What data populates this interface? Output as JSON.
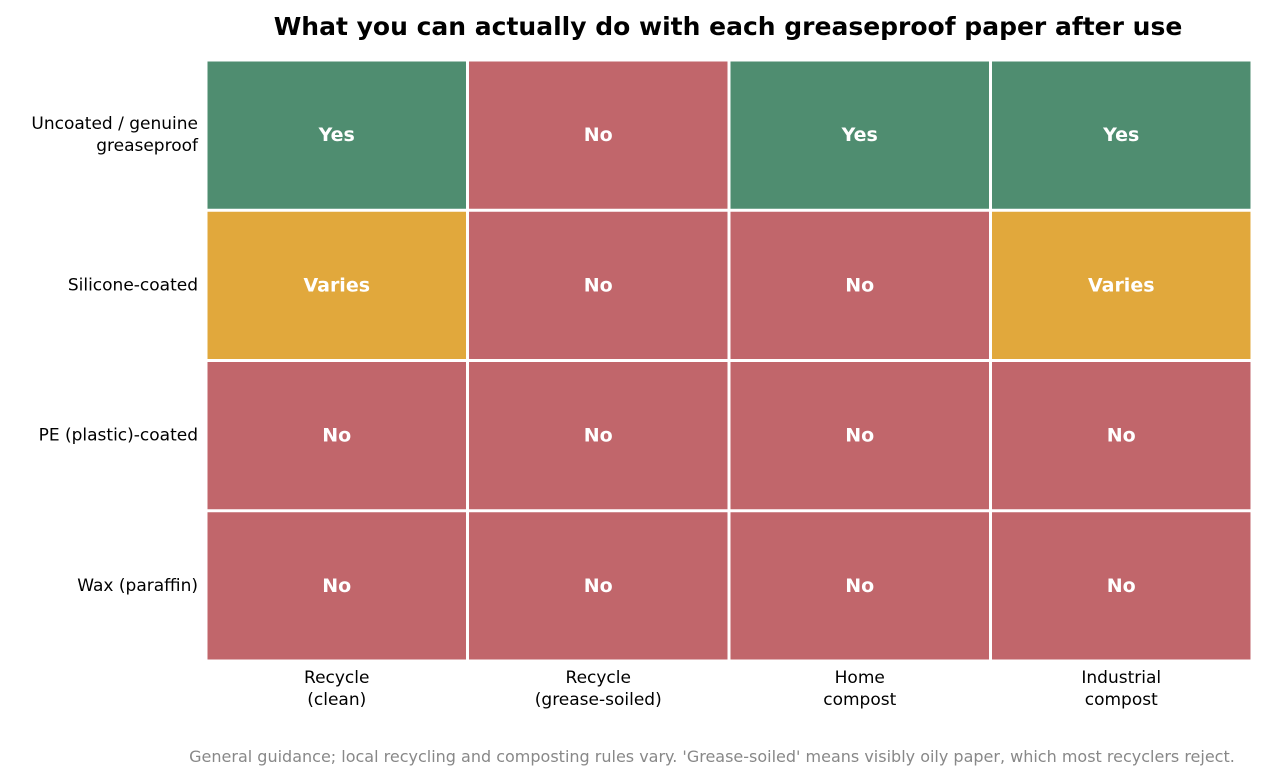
{
  "chart_data": {
    "type": "heatmap",
    "title": "What you can actually do with each greaseproof paper after use",
    "rows": [
      [
        "Uncoated / genuine",
        "greaseproof"
      ],
      [
        "Silicone-coated"
      ],
      [
        "PE (plastic)-coated"
      ],
      [
        "Wax (paraffin)"
      ]
    ],
    "columns": [
      [
        "Recycle",
        "(clean)"
      ],
      [
        "Recycle",
        "(grease-soiled)"
      ],
      [
        "Home",
        "compost"
      ],
      [
        "Industrial",
        "compost"
      ]
    ],
    "values": [
      [
        "Yes",
        "No",
        "Yes",
        "Yes"
      ],
      [
        "Varies",
        "No",
        "No",
        "Varies"
      ],
      [
        "No",
        "No",
        "No",
        "No"
      ],
      [
        "No",
        "No",
        "No",
        "No"
      ]
    ],
    "colors": {
      "Yes": "#4f8d70",
      "No": "#c1666b",
      "Varies": "#e1a83c"
    },
    "footnote": "General guidance; local recycling and composting rules vary. 'Grease-soiled' means visibly oily paper, which most recyclers reject."
  }
}
